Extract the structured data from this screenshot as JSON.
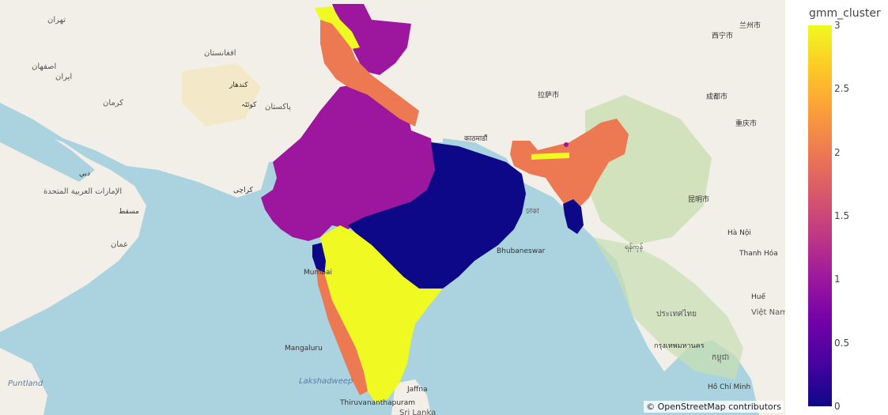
{
  "map": {
    "attribution": "© OpenStreetMap contributors",
    "labels": {
      "tehran": "تهران",
      "iran": "ایران",
      "isfahan": "اصفهان",
      "kerman": "کرمان",
      "afghanistan": "افغانستان",
      "pakistan": "پاکستان",
      "kandahar": "کندهار",
      "quetta": "کوئٹہ",
      "karachi": "کراچی",
      "muscat": "مسقط",
      "oman": "عمان",
      "dubai": "دبي",
      "uae": "الإمارات العربية المتحدة",
      "mumbai": "Mumbai",
      "mangaluru": "Mangaluru",
      "lakshadweep": "Lakshadweep",
      "jaffna": "Jaffna",
      "srilanka": "Sri Lanka",
      "thiruvananthapuram": "Thiruvananthapuram",
      "bhubaneswar": "Bhubaneswar",
      "kathmandu": "काठमाडौं",
      "dhaka": "ঢাকা",
      "chengdu": "成都市",
      "chongqing": "重庆市",
      "kunming": "昆明市",
      "lhasa": "拉萨市",
      "xining": "西宁市",
      "lanzhou": "兰州市",
      "hanoi": "Hà Nội",
      "yangon": "ရန်ကုန်",
      "bangkok": "กรุงเทพมหานคร",
      "hcm": "Hồ Chí Minh",
      "cambodia": "កម្ពុជា",
      "thailand": "ประเทศไทย",
      "vietnam": "Việt Nam",
      "hue": "Huế",
      "thanhhoa": "Thanh Hóa",
      "puntland": "Puntland"
    }
  },
  "legend": {
    "title": "gmm_cluster",
    "ticks": [
      "3",
      "2.5",
      "2",
      "1.5",
      "1",
      "0.5",
      "0"
    ],
    "tick_values": [
      3,
      2.5,
      2,
      1.5,
      1,
      0.5,
      0
    ],
    "range": [
      0,
      3
    ],
    "colorscale": [
      "#0d0887",
      "#46039f",
      "#7201a8",
      "#9c179e",
      "#bd3786",
      "#d8576b",
      "#ed7953",
      "#fb9f3a",
      "#fdca26",
      "#f0f921"
    ]
  },
  "chart_data": {
    "type": "choropleth",
    "color_variable": "gmm_cluster",
    "range": [
      0,
      3
    ],
    "regions": [
      {
        "region": "Ladakh / Kashmir",
        "gmm_cluster": 1
      },
      {
        "region": "Punjab, Himachal, Uttarakhand strip",
        "gmm_cluster": 2
      },
      {
        "region": "Northern Kashmir tip",
        "gmm_cluster": 3
      },
      {
        "region": "Northwest & Central India (Rajasthan, Gujarat, MP)",
        "gmm_cluster": 1
      },
      {
        "region": "Gangetic plain & East India",
        "gmm_cluster": 0
      },
      {
        "region": "Konkan / Maharashtra coast pocket",
        "gmm_cluster": 0
      },
      {
        "region": "Deccan Plateau & Tamil Nadu",
        "gmm_cluster": 3
      },
      {
        "region": "Western Ghats / Kerala coast",
        "gmm_cluster": 2
      },
      {
        "region": "Northeast India",
        "gmm_cluster": 2
      },
      {
        "region": "Tripura / Mizoram",
        "gmm_cluster": 0
      },
      {
        "region": "Sikkim strip",
        "gmm_cluster": 3
      }
    ]
  }
}
